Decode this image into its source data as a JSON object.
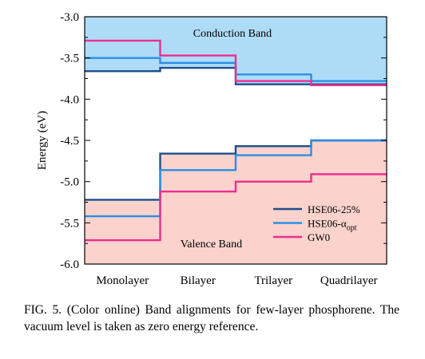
{
  "chart_data": {
    "type": "line",
    "step": true,
    "categories": [
      "Monolayer",
      "Bilayer",
      "Trilayer",
      "Quadrilayer"
    ],
    "ylabel": "Energy (eV)",
    "ylim": [
      -6.0,
      -3.0
    ],
    "yticks": [
      -3.0,
      -3.5,
      -4.0,
      -4.5,
      -5.0,
      -5.5,
      -6.0
    ],
    "ytick_labels": [
      "-3.0",
      "-3.5",
      "-4.0",
      "-4.5",
      "-5.0",
      "-5.5",
      "-6.0"
    ],
    "grid": false,
    "legend_position": "lower-right",
    "regions": [
      {
        "label": "Conduction Band",
        "color": "#aedcf7"
      },
      {
        "label": "Valence Band",
        "color": "#fbd3cc"
      }
    ],
    "series": [
      {
        "name": "HSE06-25%",
        "color": "#1f4e8c",
        "cbm": [
          -3.66,
          -3.62,
          -3.82,
          -3.82
        ],
        "vbm": [
          -5.22,
          -4.66,
          -4.57,
          -4.5
        ]
      },
      {
        "name": "HSE06-α",
        "name_sub": "opt",
        "color": "#2a8fe6",
        "cbm": [
          -3.5,
          -3.56,
          -3.7,
          -3.78
        ],
        "vbm": [
          -5.42,
          -4.86,
          -4.68,
          -4.5
        ]
      },
      {
        "name": "GW0",
        "color": "#ee2d8f",
        "cbm": [
          -3.29,
          -3.47,
          -3.78,
          -3.83
        ],
        "vbm": [
          -5.71,
          -5.12,
          -5.0,
          -4.91
        ]
      }
    ]
  },
  "caption": "FIG. 5. (Color online)  Band alignments for few-layer phosphorene. The vacuum level is taken as zero energy reference."
}
